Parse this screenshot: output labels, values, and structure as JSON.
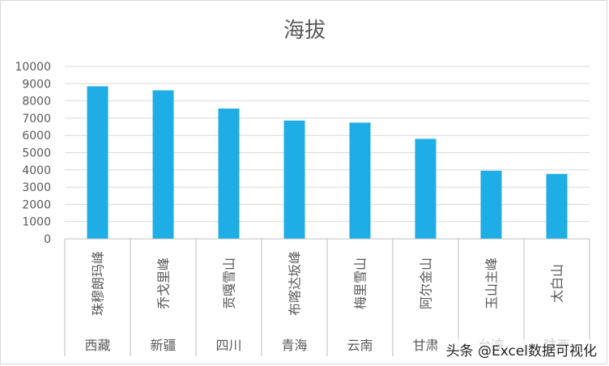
{
  "chart_data": {
    "type": "bar",
    "title": "海拔",
    "xlabel": "",
    "ylabel": "",
    "ylim": [
      0,
      10000
    ],
    "yticks": [
      0,
      1000,
      2000,
      3000,
      4000,
      5000,
      6000,
      7000,
      8000,
      9000,
      10000
    ],
    "grid": true,
    "legend": "none",
    "bar_color": "#1eaee5",
    "categories": [
      "珠穆朗玛峰",
      "乔戈里峰",
      "贡嘎雪山",
      "布喀达坂峰",
      "梅里雪山",
      "阿尔金山",
      "玉山主峰",
      "太白山"
    ],
    "groups": [
      "西藏",
      "新疆",
      "四川",
      "青海",
      "云南",
      "甘肃",
      "台湾",
      "陕西"
    ],
    "values": [
      8848,
      8611,
      7556,
      6860,
      6740,
      5798,
      3952,
      3767
    ]
  },
  "watermark": "头条 @Excel数据可视化"
}
